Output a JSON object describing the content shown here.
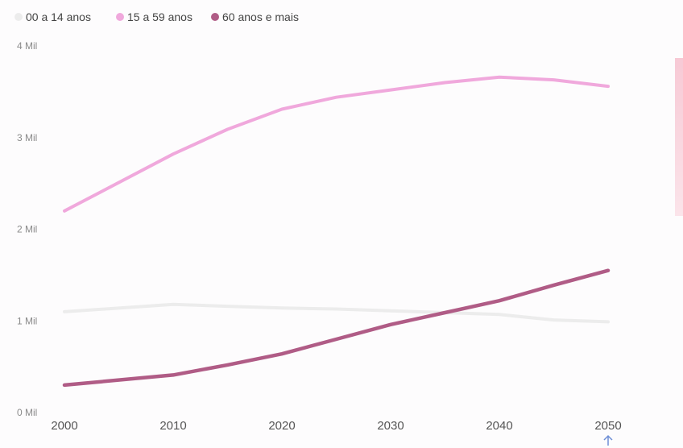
{
  "chart_data": {
    "type": "line",
    "title": "",
    "xlabel": "",
    "ylabel": "",
    "x": [
      2000,
      2010,
      2015,
      2020,
      2025,
      2030,
      2035,
      2040,
      2045,
      2050
    ],
    "ylim": [
      0,
      4000
    ],
    "y_ticks": [
      {
        "value": 0,
        "label": "0 Mil"
      },
      {
        "value": 1000,
        "label": "1 Mil"
      },
      {
        "value": 2000,
        "label": "2 Mil"
      },
      {
        "value": 3000,
        "label": "3 Mil"
      },
      {
        "value": 4000,
        "label": "4 Mil"
      }
    ],
    "x_ticks": [
      "2000",
      "2010",
      "2020",
      "2030",
      "2040",
      "2050"
    ],
    "legend_position": "top-left",
    "grid": false,
    "series": [
      {
        "name": "00 a 14 anos",
        "color": "#ececec",
        "values": [
          1100,
          1180,
          1160,
          1140,
          1130,
          1110,
          1090,
          1070,
          1010,
          990
        ]
      },
      {
        "name": "15 a 59 anos",
        "color": "#f0a8dc",
        "values": [
          2200,
          2820,
          3090,
          3310,
          3440,
          3520,
          3600,
          3660,
          3630,
          3560
        ]
      },
      {
        "name": "60 anos e mais",
        "color": "#b05c86",
        "values": [
          300,
          410,
          520,
          640,
          800,
          960,
          1090,
          1220,
          1390,
          1550
        ]
      }
    ]
  }
}
